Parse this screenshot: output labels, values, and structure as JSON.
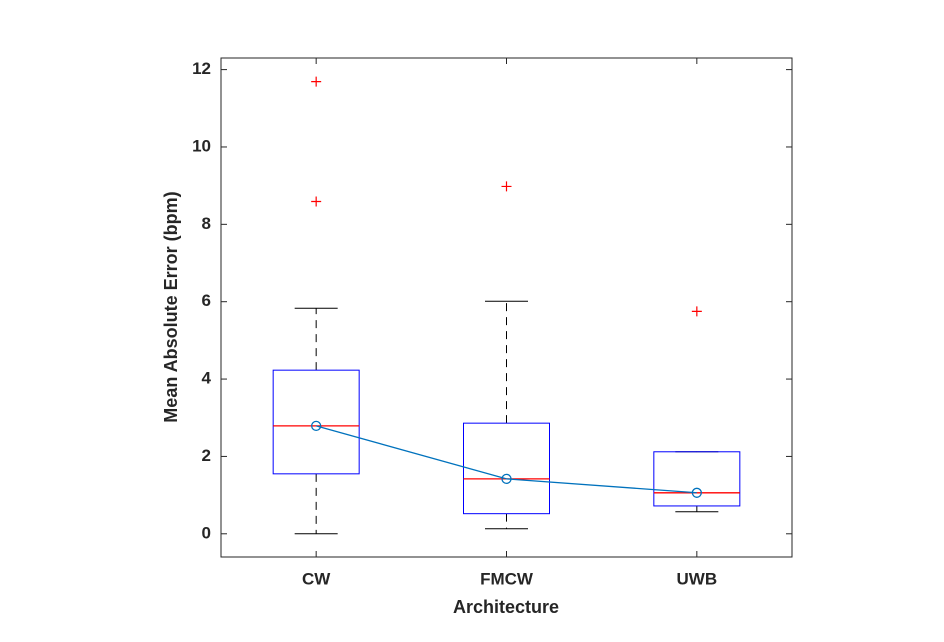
{
  "chart_data": {
    "type": "box",
    "xlabel": "Architecture",
    "ylabel": "Mean Absolute Error (bpm)",
    "categories": [
      "CW",
      "FMCW",
      "UWB"
    ],
    "whisker_low": [
      0.0,
      0.13,
      0.57
    ],
    "q1": [
      1.55,
      0.52,
      0.72
    ],
    "median": [
      2.79,
      1.42,
      1.06
    ],
    "q3": [
      4.23,
      2.86,
      2.12
    ],
    "whisker_high": [
      5.83,
      6.01,
      2.12
    ],
    "outliers": [
      [
        11.69,
        8.59
      ],
      [
        8.98
      ],
      [
        5.75
      ]
    ],
    "means": [
      2.79,
      1.42,
      1.06
    ],
    "box_color": "#0000ff",
    "median_color": "#ff0000",
    "whisker_color": "#000000",
    "outlier_color": "#ff0000",
    "mean_color": "#0072bd",
    "ylim": [
      -0.6,
      12.3
    ],
    "yticks": [
      0,
      2,
      4,
      6,
      8,
      10,
      12
    ]
  }
}
